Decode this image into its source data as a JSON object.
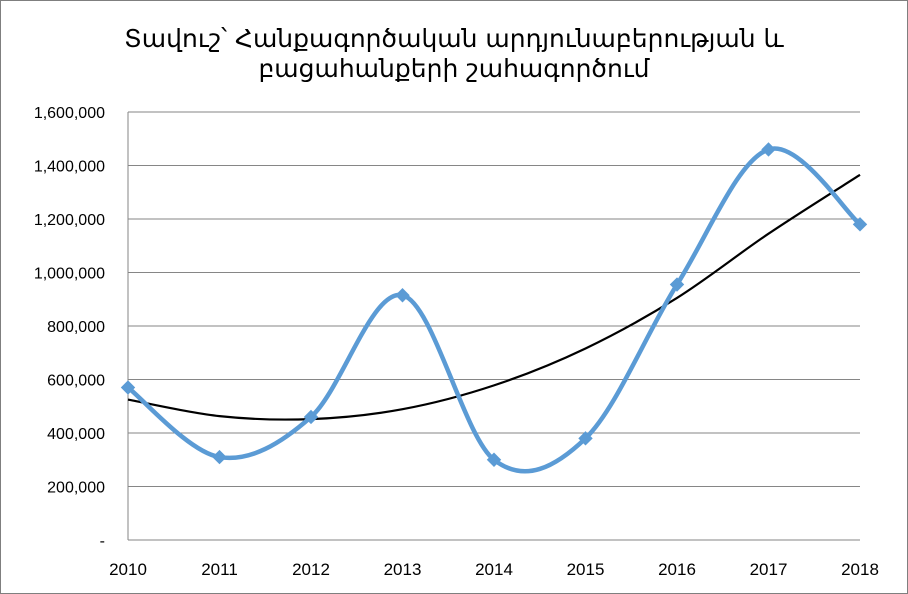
{
  "chart_data": {
    "type": "line",
    "title_lines": [
      "Տավուշ՝ Հանքագործական արդյունաբերության և",
      "բացահանքերի շահագործում"
    ],
    "xlabel": "",
    "ylabel": "",
    "categories": [
      "2010",
      "2011",
      "2012",
      "2013",
      "2014",
      "2015",
      "2016",
      "2017",
      "2018"
    ],
    "series": [
      {
        "values": [
          570000,
          310000,
          460000,
          915000,
          300000,
          380000,
          955000,
          1460000,
          1180000
        ],
        "color": "#5b9bd5",
        "marker": "diamond",
        "smooth": true
      }
    ],
    "trendline": {
      "type": "polynomial",
      "order": 2,
      "values": [
        525000,
        463000,
        452000,
        489000,
        578000,
        716000,
        905000,
        1145000,
        1365000
      ],
      "color": "#000000"
    },
    "ylim": [
      0,
      1600000
    ],
    "yticks": [
      0,
      200000,
      400000,
      600000,
      800000,
      1000000,
      1200000,
      1400000,
      1600000
    ],
    "ytick_labels": [
      "-",
      "200,000",
      "400,000",
      "600,000",
      "800,000",
      "1,000,000",
      "1,200,000",
      "1,400,000",
      "1,600,000"
    ],
    "grid": true,
    "legend": "none"
  }
}
